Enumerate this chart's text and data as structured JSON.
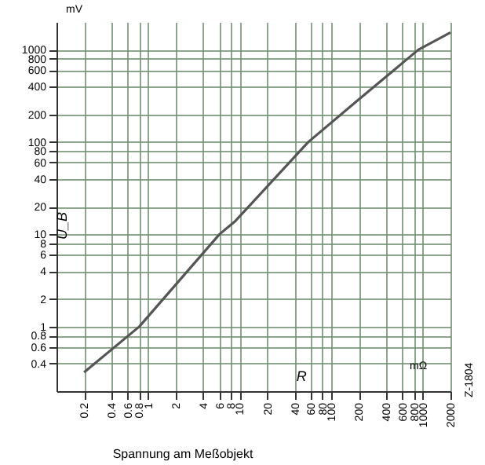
{
  "chart_data": {
    "type": "line",
    "title": "Spannung am Meßobjekt",
    "xlabel": "R",
    "ylabel": "U_B",
    "annotations": [
      "mV",
      "mΩ",
      "Z-1804"
    ],
    "x": [
      0.2,
      0.8,
      6,
      9,
      56,
      200,
      400,
      890,
      2000
    ],
    "series": [
      {
        "color": "#555555",
        "values": [
          0.32,
          1,
          10,
          14,
          100,
          290,
          515,
          1000,
          1540
        ]
      }
    ],
    "log": "xy",
    "xlim": [
      0.1,
      2000
    ],
    "ylim": [
      0.2,
      2000
    ],
    "xticks": [
      0.2,
      0.4,
      0.6,
      0.8,
      1,
      2,
      4,
      6,
      8,
      10,
      20,
      40,
      60,
      80,
      100,
      200,
      400,
      600,
      800,
      1000,
      2000
    ],
    "yticks": [
      0.4,
      0.6,
      0.8,
      1,
      2,
      4,
      6,
      8,
      10,
      20,
      40,
      60,
      80,
      100,
      200,
      400,
      600,
      800,
      1000
    ],
    "grid": true,
    "marker": "none",
    "line_style": "solid"
  }
}
